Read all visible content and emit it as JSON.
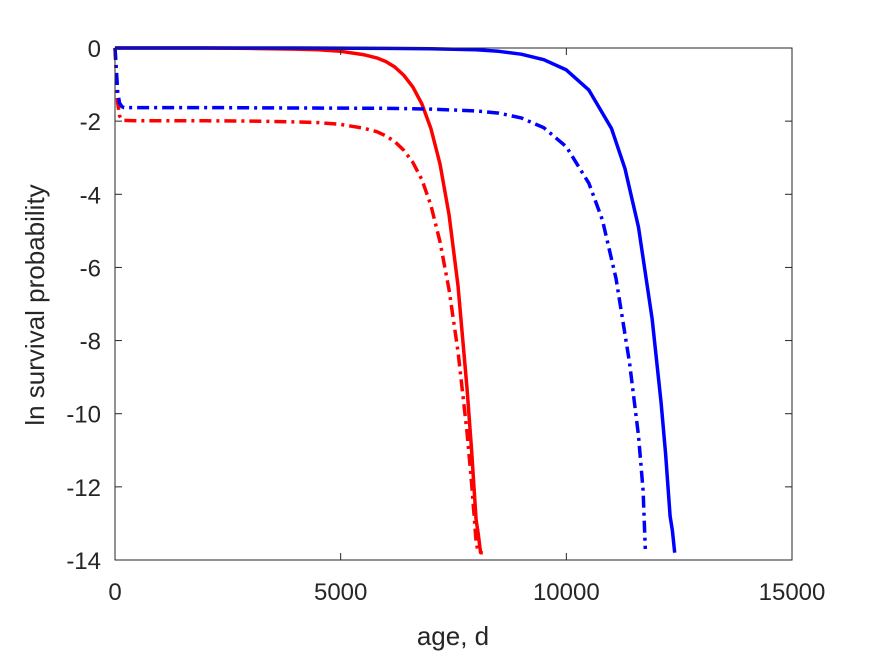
{
  "chart_data": {
    "type": "line",
    "title": "",
    "xlabel": "age, d",
    "ylabel": "ln survival probability",
    "xlim": [
      0,
      15000
    ],
    "ylim": [
      -14,
      0
    ],
    "xticks": [
      0,
      5000,
      10000,
      15000
    ],
    "yticks": [
      0,
      -2,
      -4,
      -6,
      -8,
      -10,
      -12,
      -14
    ],
    "grid": false,
    "legend": "none",
    "series": [
      {
        "color": "#ff0000",
        "style": "solid",
        "x": [
          0,
          1000,
          2000,
          3000,
          4000,
          4500,
          5000,
          5500,
          5800,
          6000,
          6200,
          6400,
          6600,
          6800,
          7000,
          7200,
          7400,
          7600,
          7800,
          7900,
          8000,
          8050,
          8100,
          8150
        ],
        "y": [
          0,
          0,
          0,
          -0.01,
          -0.03,
          -0.05,
          -0.09,
          -0.18,
          -0.27,
          -0.37,
          -0.52,
          -0.75,
          -1.07,
          -1.53,
          -2.2,
          -3.17,
          -4.55,
          -6.5,
          -9.3,
          -11.0,
          -12.9,
          -13.3,
          -13.8,
          -13.8
        ]
      },
      {
        "color": "#ff0000",
        "style": "dashdot",
        "x": [
          0,
          30,
          60,
          100,
          150,
          200,
          500,
          1000,
          2000,
          3000,
          4000,
          4500,
          5000,
          5500,
          5800,
          6000,
          6200,
          6400,
          6600,
          6800,
          7000,
          7200,
          7400,
          7600,
          7800,
          7900,
          8000,
          8050
        ],
        "y": [
          0,
          -0.8,
          -1.5,
          -1.85,
          -1.95,
          -1.98,
          -1.99,
          -1.99,
          -1.99,
          -2.0,
          -2.02,
          -2.04,
          -2.09,
          -2.19,
          -2.29,
          -2.4,
          -2.56,
          -2.8,
          -3.13,
          -3.6,
          -4.3,
          -5.3,
          -6.6,
          -8.3,
          -10.5,
          -11.9,
          -13.5,
          -13.8
        ]
      },
      {
        "color": "#0000ff",
        "style": "solid",
        "x": [
          0,
          2000,
          4000,
          6000,
          7000,
          8000,
          8500,
          9000,
          9500,
          10000,
          10500,
          11000,
          11300,
          11600,
          11900,
          12100,
          12200,
          12300,
          12350,
          12400
        ],
        "y": [
          0,
          0,
          0,
          -0.01,
          -0.02,
          -0.05,
          -0.09,
          -0.17,
          -0.32,
          -0.6,
          -1.15,
          -2.2,
          -3.3,
          -4.9,
          -7.4,
          -9.7,
          -11.1,
          -12.8,
          -13.2,
          -13.8
        ]
      },
      {
        "color": "#0000ff",
        "style": "dashdot",
        "x": [
          0,
          30,
          60,
          100,
          150,
          200,
          500,
          1000,
          2000,
          4000,
          6000,
          7000,
          8000,
          8500,
          9000,
          9500,
          10000,
          10500,
          10800,
          11100,
          11400,
          11600,
          11700,
          11750
        ],
        "y": [
          0,
          -0.6,
          -1.2,
          -1.5,
          -1.6,
          -1.63,
          -1.63,
          -1.63,
          -1.63,
          -1.64,
          -1.65,
          -1.67,
          -1.72,
          -1.78,
          -1.91,
          -2.18,
          -2.7,
          -3.7,
          -4.7,
          -6.3,
          -8.6,
          -10.6,
          -12.1,
          -13.7
        ]
      }
    ]
  }
}
